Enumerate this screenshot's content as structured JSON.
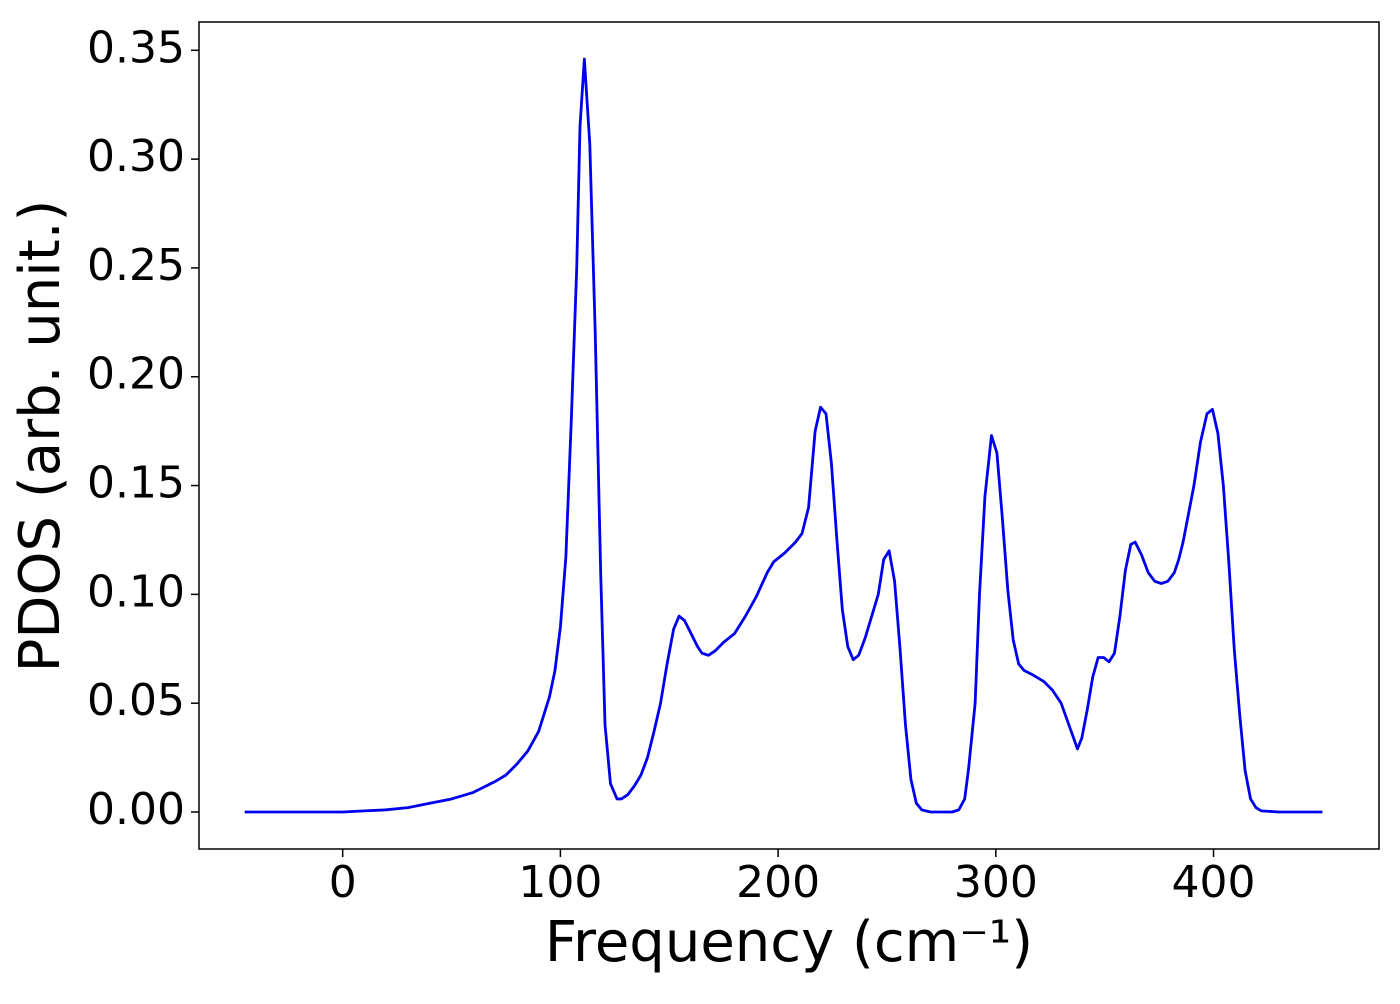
{
  "chart_data": {
    "type": "line",
    "xlabel": "Frequency (cm⁻¹)",
    "ylabel": "PDOS (arb. unit.)",
    "xlim": [
      -66,
      476
    ],
    "ylim": [
      -0.017,
      0.363
    ],
    "xticks": [
      0,
      100,
      200,
      300,
      400
    ],
    "yticks": [
      {
        "value": 0,
        "label": "0.00"
      },
      {
        "value": 0.05,
        "label": "0.05"
      },
      {
        "value": 0.1,
        "label": "0.10"
      },
      {
        "value": 0.15,
        "label": "0.15"
      },
      {
        "value": 0.2,
        "label": "0.20"
      },
      {
        "value": 0.25,
        "label": "0.25"
      },
      {
        "value": 0.3,
        "label": "0.30"
      },
      {
        "value": 0.35,
        "label": "0.35"
      }
    ],
    "x": [
      -45,
      0,
      10,
      20,
      30,
      40,
      50,
      60,
      70,
      75,
      80,
      85,
      90,
      95,
      97.5,
      100,
      102.5,
      105,
      107.5,
      109,
      111,
      113.5,
      116,
      118.5,
      120.5,
      123,
      126,
      128,
      131,
      134,
      137,
      140,
      143,
      146,
      149,
      152,
      154.5,
      157,
      160,
      163,
      165,
      168,
      171,
      175,
      180,
      185,
      190,
      195,
      198,
      203,
      208,
      211,
      214,
      217,
      219.5,
      222,
      224.5,
      227,
      229.5,
      232,
      234.5,
      237,
      240,
      243,
      246,
      248.5,
      251,
      253.5,
      256,
      258.5,
      261,
      263.5,
      266,
      270,
      280,
      283,
      285.7,
      287.5,
      290.5,
      292.5,
      295,
      298,
      300.5,
      303,
      305.5,
      308,
      310.5,
      313,
      317,
      322,
      326,
      330,
      335,
      337.5,
      339.5,
      342,
      344.5,
      347,
      349.5,
      352,
      354.5,
      357,
      359.5,
      362,
      364,
      367,
      370,
      373,
      376,
      379,
      382,
      384,
      386,
      388.5,
      391,
      394,
      397,
      399.5,
      402,
      404.5,
      407,
      409.5,
      412,
      414.5,
      417,
      419.5,
      422,
      430,
      450
    ],
    "series": [
      {
        "name": "PDOS",
        "color": "#0000ee",
        "values": [
          0,
          0,
          0.0005,
          0.001,
          0.002,
          0.004,
          0.006,
          0.009,
          0.014,
          0.017,
          0.022,
          0.028,
          0.037,
          0.053,
          0.065,
          0.085,
          0.117,
          0.18,
          0.25,
          0.315,
          0.346,
          0.307,
          0.22,
          0.11,
          0.04,
          0.013,
          0.006,
          0.006,
          0.008,
          0.012,
          0.017,
          0.025,
          0.037,
          0.05,
          0.068,
          0.084,
          0.09,
          0.088,
          0.082,
          0.076,
          0.073,
          0.072,
          0.074,
          0.078,
          0.082,
          0.09,
          0.099,
          0.11,
          0.115,
          0.119,
          0.124,
          0.128,
          0.14,
          0.175,
          0.186,
          0.183,
          0.16,
          0.125,
          0.093,
          0.076,
          0.07,
          0.072,
          0.08,
          0.09,
          0.1,
          0.116,
          0.12,
          0.106,
          0.075,
          0.04,
          0.015,
          0.004,
          0.001,
          0,
          0,
          0.001,
          0.006,
          0.02,
          0.05,
          0.1,
          0.145,
          0.173,
          0.165,
          0.135,
          0.102,
          0.079,
          0.068,
          0.065,
          0.063,
          0.06,
          0.056,
          0.05,
          0.036,
          0.029,
          0.034,
          0.047,
          0.062,
          0.071,
          0.071,
          0.069,
          0.073,
          0.09,
          0.111,
          0.123,
          0.124,
          0.118,
          0.11,
          0.106,
          0.105,
          0.106,
          0.11,
          0.116,
          0.124,
          0.137,
          0.15,
          0.17,
          0.183,
          0.185,
          0.174,
          0.15,
          0.115,
          0.075,
          0.045,
          0.019,
          0.006,
          0.002,
          0.0005,
          0,
          0
        ]
      }
    ]
  }
}
